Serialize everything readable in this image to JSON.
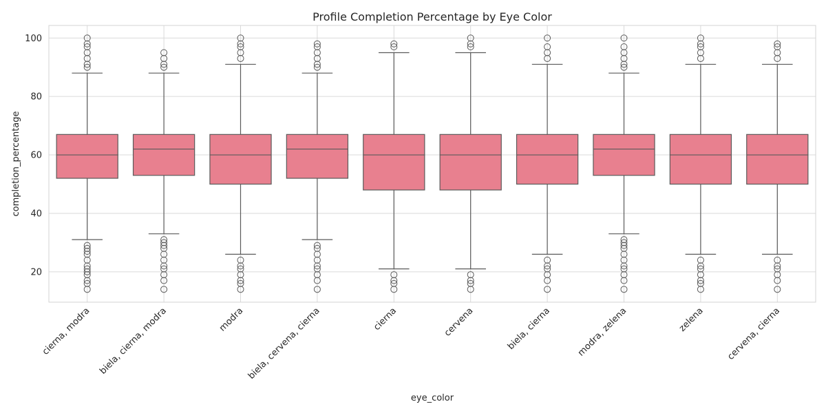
{
  "chart_data": {
    "type": "box",
    "title": "Profile Completion Percentage by Eye Color",
    "xlabel": "eye_color",
    "ylabel": "completion_percentage",
    "ylim": [
      9.6,
      104.3
    ],
    "yticks": [
      20,
      40,
      60,
      80,
      100
    ],
    "grid": true,
    "box_color": "#e8808f",
    "edge_color": "#5a5a5a",
    "grid_color": "#d9d9d9",
    "categories": [
      "cierna, modra",
      "biela, cierna, modra",
      "modra",
      "biela, cervena, cierna",
      "cierna",
      "cervena",
      "biela, cierna",
      "modra, zelena",
      "zelena",
      "cervena, cierna"
    ],
    "boxes": [
      {
        "whislo": 31,
        "q1": 52,
        "med": 60,
        "q3": 67,
        "whishi": 88,
        "fliers": [
          14,
          16,
          17,
          19,
          20,
          21,
          22,
          24,
          26,
          27,
          28,
          29,
          90,
          91,
          93,
          95,
          97,
          98,
          100
        ]
      },
      {
        "whislo": 33,
        "q1": 53,
        "med": 62,
        "q3": 67,
        "whishi": 88,
        "fliers": [
          14,
          17,
          19,
          21,
          22,
          24,
          26,
          28,
          29,
          30,
          31,
          90,
          91,
          93,
          95
        ]
      },
      {
        "whislo": 26,
        "q1": 50,
        "med": 60,
        "q3": 67,
        "whishi": 91,
        "fliers": [
          14,
          16,
          17,
          19,
          21,
          22,
          24,
          93,
          95,
          97,
          98,
          100
        ]
      },
      {
        "whislo": 31,
        "q1": 52,
        "med": 62,
        "q3": 67,
        "whishi": 88,
        "fliers": [
          14,
          17,
          19,
          21,
          22,
          24,
          26,
          28,
          29,
          90,
          91,
          93,
          95,
          97,
          98
        ]
      },
      {
        "whislo": 21,
        "q1": 48,
        "med": 60,
        "q3": 67,
        "whishi": 95,
        "fliers": [
          14,
          16,
          17,
          19,
          97,
          98
        ]
      },
      {
        "whislo": 21,
        "q1": 48,
        "med": 60,
        "q3": 67,
        "whishi": 95,
        "fliers": [
          14,
          16,
          17,
          19,
          97,
          98,
          100
        ]
      },
      {
        "whislo": 26,
        "q1": 50,
        "med": 60,
        "q3": 67,
        "whishi": 91,
        "fliers": [
          14,
          17,
          19,
          21,
          22,
          24,
          93,
          95,
          97,
          100
        ]
      },
      {
        "whislo": 33,
        "q1": 53,
        "med": 62,
        "q3": 67,
        "whishi": 88,
        "fliers": [
          14,
          17,
          19,
          21,
          22,
          24,
          26,
          28,
          29,
          30,
          31,
          90,
          91,
          93,
          95,
          97,
          100
        ]
      },
      {
        "whislo": 26,
        "q1": 50,
        "med": 60,
        "q3": 67,
        "whishi": 91,
        "fliers": [
          14,
          16,
          17,
          19,
          21,
          22,
          24,
          93,
          95,
          97,
          98,
          100
        ]
      },
      {
        "whislo": 26,
        "q1": 50,
        "med": 60,
        "q3": 67,
        "whishi": 91,
        "fliers": [
          14,
          17,
          19,
          21,
          22,
          24,
          93,
          95,
          97,
          98
        ]
      }
    ]
  }
}
